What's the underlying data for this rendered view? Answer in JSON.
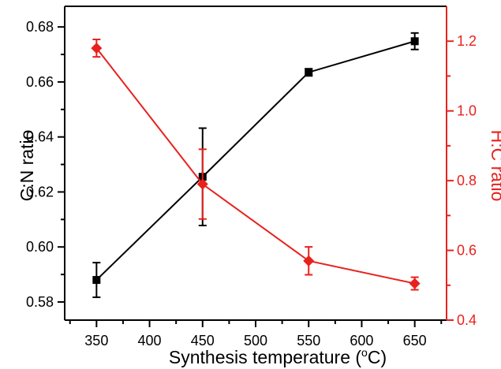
{
  "chart_data": {
    "type": "line",
    "xlabel": "Synthesis temperature (",
    "xlabel_sup": "o",
    "xlabel_suffix": "C)",
    "ylabel_left": "C:N ratio",
    "ylabel_right": "H:C ratio",
    "xlim": [
      320,
      680
    ],
    "x_ticks": [
      350,
      400,
      450,
      500,
      550,
      600,
      650
    ],
    "ylim_left": [
      0.5734,
      0.6875
    ],
    "y_ticks_left": [
      "0.58",
      "0.60",
      "0.62",
      "0.64",
      "0.66",
      "0.68"
    ],
    "ylim_right": [
      0.4,
      1.3
    ],
    "y_ticks_right": [
      "0.4",
      "0.6",
      "0.8",
      "1.0",
      "1.2"
    ],
    "series": [
      {
        "axis": "left",
        "color": "#000000",
        "marker": "square",
        "x": [
          350,
          450,
          550,
          650
        ],
        "y": [
          0.588,
          0.6255,
          0.6635,
          0.6748
        ],
        "err": [
          0.0063,
          0.0177,
          0.0013,
          0.003
        ]
      },
      {
        "axis": "right",
        "color": "#e8211d",
        "marker": "diamond",
        "x": [
          350,
          450,
          550,
          650
        ],
        "y": [
          1.18,
          0.79,
          0.57,
          0.505
        ],
        "err": [
          0.025,
          0.1,
          0.04,
          0.018
        ]
      }
    ],
    "right_axis_color": "#e8211d",
    "grid": false,
    "legend": false
  }
}
